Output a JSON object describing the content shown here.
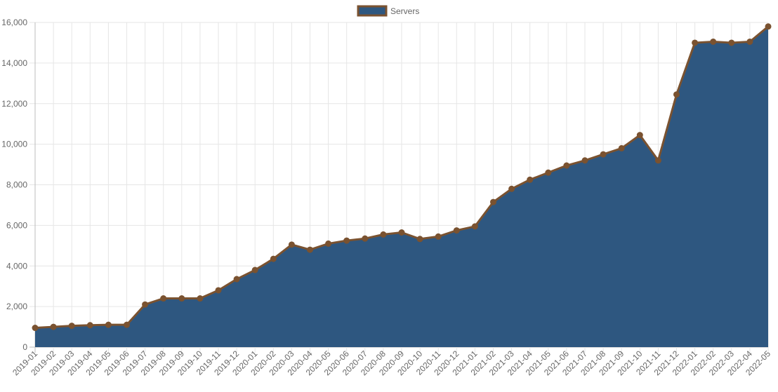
{
  "chart_data": {
    "type": "area",
    "title": "",
    "xlabel": "",
    "ylabel": "",
    "legend_position": "top",
    "grid": true,
    "ylim": [
      0,
      16000
    ],
    "y_ticks": [
      "0",
      "2,000",
      "4,000",
      "6,000",
      "8,000",
      "10,000",
      "12,000",
      "14,000",
      "16,000"
    ],
    "categories": [
      "2019-01",
      "2019-02",
      "2019-03",
      "2019-04",
      "2019-05",
      "2019-06",
      "2019-07",
      "2019-08",
      "2019-09",
      "2019-10",
      "2019-11",
      "2019-12",
      "2020-01",
      "2020-02",
      "2020-03",
      "2020-04",
      "2020-05",
      "2020-06",
      "2020-07",
      "2020-08",
      "2020-09",
      "2020-10",
      "2020-11",
      "2020-12",
      "2021-01",
      "2021-02",
      "2021-03",
      "2021-04",
      "2021-05",
      "2021-06",
      "2021-07",
      "2021-08",
      "2021-09",
      "2021-10",
      "2021-11",
      "2021-12",
      "2022-01",
      "2022-02",
      "2022-03",
      "2022-04",
      "2022-05"
    ],
    "series": [
      {
        "name": "Servers",
        "fill_color": "#2e5780",
        "line_color": "#7a5230",
        "values": [
          950,
          1000,
          1050,
          1080,
          1100,
          1100,
          2100,
          2400,
          2400,
          2400,
          2800,
          3350,
          3800,
          4350,
          5050,
          4800,
          5100,
          5250,
          5350,
          5550,
          5650,
          5330,
          5450,
          5750,
          5950,
          7150,
          7800,
          8250,
          8600,
          8950,
          9200,
          9500,
          9800,
          10450,
          9200,
          12450,
          15000,
          15050,
          15000,
          15050,
          15800
        ]
      }
    ]
  }
}
